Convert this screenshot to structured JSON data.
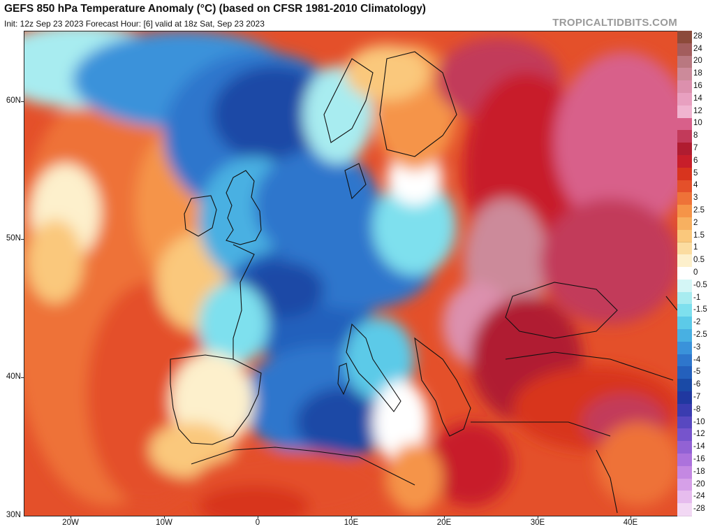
{
  "header": {
    "title": "GEFS 850 hPa Temperature Anomaly (°C) (based on CFSR 1981-2010 Climatology)",
    "subtitle": "Init: 12z Sep 23 2023   Forecast Hour: [6]   valid at 18z Sat, Sep 23 2023",
    "brand": "TROPICALTIDBITS.COM"
  },
  "map": {
    "region": "Europe",
    "lat_range": [
      30,
      65
    ],
    "lon_range": [
      -25,
      45
    ],
    "lat_labels": [
      "60N",
      "50N",
      "40N",
      "30N"
    ],
    "lon_labels": [
      "20W",
      "10W",
      "0",
      "10E",
      "20E",
      "30E",
      "40E"
    ],
    "lat_ticks": [
      60,
      50,
      40,
      30
    ],
    "lon_ticks": [
      -20,
      -10,
      0,
      10,
      20,
      30,
      40
    ]
  },
  "colorbar": {
    "labels": [
      "28",
      "24",
      "20",
      "18",
      "16",
      "14",
      "12",
      "10",
      "8",
      "7",
      "6",
      "5",
      "4",
      "3",
      "2.5",
      "2",
      "1.5",
      "1",
      "0.5",
      "0",
      "-0.5",
      "-1",
      "-1.5",
      "-2",
      "-2.5",
      "-3",
      "-4",
      "-5",
      "-6",
      "-7",
      "-8",
      "-10",
      "-12",
      "-14",
      "-16",
      "-18",
      "-20",
      "-24",
      "-28"
    ],
    "colors": [
      "#8c4a3a",
      "#a35d5d",
      "#b97880",
      "#cc8a9a",
      "#dc90ad",
      "#e8a0c0",
      "#f0b4d0",
      "#d8608a",
      "#c23a5a",
      "#b01c30",
      "#c81e2a",
      "#d8341e",
      "#e4502a",
      "#ee7238",
      "#f59448",
      "#f7b060",
      "#fac87c",
      "#fbdca0",
      "#fdf0cc",
      "#ffffff",
      "#d4f6f6",
      "#a8ecf0",
      "#7ee0ee",
      "#5ccae8",
      "#48b0e2",
      "#3a92da",
      "#2e76cc",
      "#2460bc",
      "#1a4aa6",
      "#2038a0",
      "#3a3cb0",
      "#5848c0",
      "#7654cc",
      "#9262d4",
      "#ac72dc",
      "#c488e2",
      "#d6a0e8",
      "#e6bcee",
      "#f2d8f4"
    ]
  }
}
